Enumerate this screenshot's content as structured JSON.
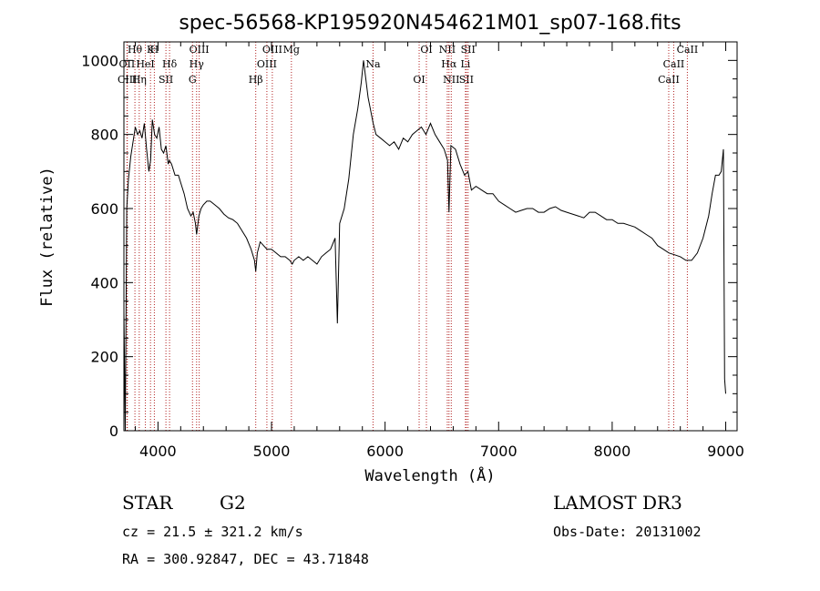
{
  "chart_data": {
    "type": "line",
    "title": "spec-56568-KP195920N454621M01_sp07-168.fits",
    "xlabel": "Wavelength (Å)",
    "ylabel": "Flux (relative)",
    "xlim": [
      3700,
      9100
    ],
    "ylim": [
      0,
      1050
    ],
    "xticks": [
      4000,
      5000,
      6000,
      7000,
      8000,
      9000
    ],
    "yticks": [
      0,
      200,
      400,
      600,
      800,
      1000
    ],
    "grid": false,
    "series": [
      {
        "x": [
          3700,
          3712,
          3725,
          3740,
          3760,
          3780,
          3800,
          3820,
          3840,
          3860,
          3880,
          3900,
          3920,
          3935,
          3950,
          3970,
          3990,
          4010,
          4030,
          4050,
          4070,
          4090,
          4100,
          4120,
          4150,
          4180,
          4200,
          4230,
          4260,
          4290,
          4310,
          4330,
          4340,
          4360,
          4380,
          4400,
          4430,
          4460,
          4500,
          4540,
          4580,
          4620,
          4660,
          4700,
          4740,
          4780,
          4820,
          4850,
          4861,
          4875,
          4900,
          4930,
          4960,
          5000,
          5040,
          5080,
          5120,
          5160,
          5183,
          5200,
          5240,
          5280,
          5320,
          5360,
          5400,
          5440,
          5480,
          5520,
          5560,
          5580,
          5600,
          5640,
          5680,
          5720,
          5760,
          5790,
          5810,
          5830,
          5850,
          5870,
          5895,
          5920,
          5960,
          6000,
          6040,
          6080,
          6120,
          6160,
          6200,
          6240,
          6280,
          6320,
          6360,
          6400,
          6440,
          6480,
          6520,
          6550,
          6563,
          6580,
          6620,
          6660,
          6700,
          6730,
          6760,
          6800,
          6850,
          6900,
          6950,
          7000,
          7050,
          7100,
          7150,
          7200,
          7250,
          7300,
          7350,
          7400,
          7450,
          7500,
          7550,
          7600,
          7650,
          7700,
          7750,
          7800,
          7850,
          7900,
          7950,
          8000,
          8050,
          8100,
          8150,
          8200,
          8250,
          8300,
          8350,
          8400,
          8450,
          8500,
          8550,
          8600,
          8650,
          8700,
          8750,
          8800,
          8850,
          8880,
          8910,
          8940,
          8960,
          8980,
          8990,
          9000
        ],
        "y": [
          320,
          0,
          600,
          680,
          740,
          780,
          820,
          800,
          810,
          790,
          830,
          760,
          700,
          730,
          840,
          800,
          790,
          820,
          760,
          750,
          770,
          720,
          730,
          720,
          690,
          690,
          670,
          640,
          600,
          580,
          590,
          560,
          530,
          580,
          600,
          610,
          620,
          620,
          610,
          600,
          585,
          575,
          570,
          560,
          540,
          520,
          490,
          460,
          430,
          480,
          510,
          500,
          490,
          490,
          480,
          470,
          470,
          460,
          450,
          460,
          470,
          460,
          470,
          460,
          450,
          470,
          480,
          490,
          520,
          290,
          560,
          600,
          680,
          800,
          870,
          940,
          1000,
          950,
          900,
          870,
          830,
          800,
          790,
          780,
          770,
          780,
          760,
          790,
          780,
          800,
          810,
          820,
          800,
          830,
          800,
          780,
          760,
          730,
          590,
          770,
          760,
          720,
          690,
          700,
          650,
          660,
          650,
          640,
          640,
          620,
          610,
          600,
          590,
          595,
          600,
          600,
          590,
          590,
          600,
          605,
          595,
          590,
          585,
          580,
          575,
          590,
          590,
          580,
          570,
          570,
          560,
          560,
          555,
          550,
          540,
          530,
          520,
          500,
          490,
          480,
          475,
          470,
          460,
          460,
          480,
          520,
          580,
          640,
          690,
          690,
          700,
          760,
          140,
          100
        ]
      }
    ],
    "lines": [
      {
        "name": "Hθ",
        "x": 3797
      },
      {
        "name": "OII",
        "x": 3727
      },
      {
        "name": "CIII",
        "x": 3730
      },
      {
        "name": "K",
        "x": 3934
      },
      {
        "name": "HeI",
        "x": 3889
      },
      {
        "name": "Hη",
        "x": 3835
      },
      {
        "name": "H",
        "x": 3968
      },
      {
        "name": "Hδ",
        "x": 4102
      },
      {
        "name": "SII",
        "x": 4070
      },
      {
        "name": "OIII",
        "x": 4363
      },
      {
        "name": "Hγ",
        "x": 4340
      },
      {
        "name": "G",
        "x": 4304
      },
      {
        "name": "OIII",
        "x": 5007
      },
      {
        "name": "OIII",
        "x": 4959
      },
      {
        "name": "Hβ",
        "x": 4861
      },
      {
        "name": "Mg",
        "x": 5175
      },
      {
        "name": "Na",
        "x": 5894
      },
      {
        "name": "OI",
        "x": 6300
      },
      {
        "name": "OI",
        "x": 6364
      },
      {
        "name": "Hα",
        "x": 6563
      },
      {
        "name": "SII",
        "x": 6716
      },
      {
        "name": "NII",
        "x": 6548
      },
      {
        "name": "Li",
        "x": 6708
      },
      {
        "name": "NII",
        "x": 6583
      },
      {
        "name": "SII",
        "x": 6731
      },
      {
        "name": "CaII",
        "x": 8542
      },
      {
        "name": "CaII",
        "x": 8498
      },
      {
        "name": "CaII",
        "x": 8662
      }
    ]
  },
  "info": {
    "class_label": "STAR",
    "subclass": "G2",
    "survey": "LAMOST DR3",
    "cz": "cz = 21.5 ± 321.2 km/s",
    "obs_date": "Obs-Date: 20131002",
    "radec": "RA = 300.92847, DEC =  43.71848"
  },
  "colors": {
    "spectrum": "#000000",
    "line_markers": "#b22222"
  }
}
